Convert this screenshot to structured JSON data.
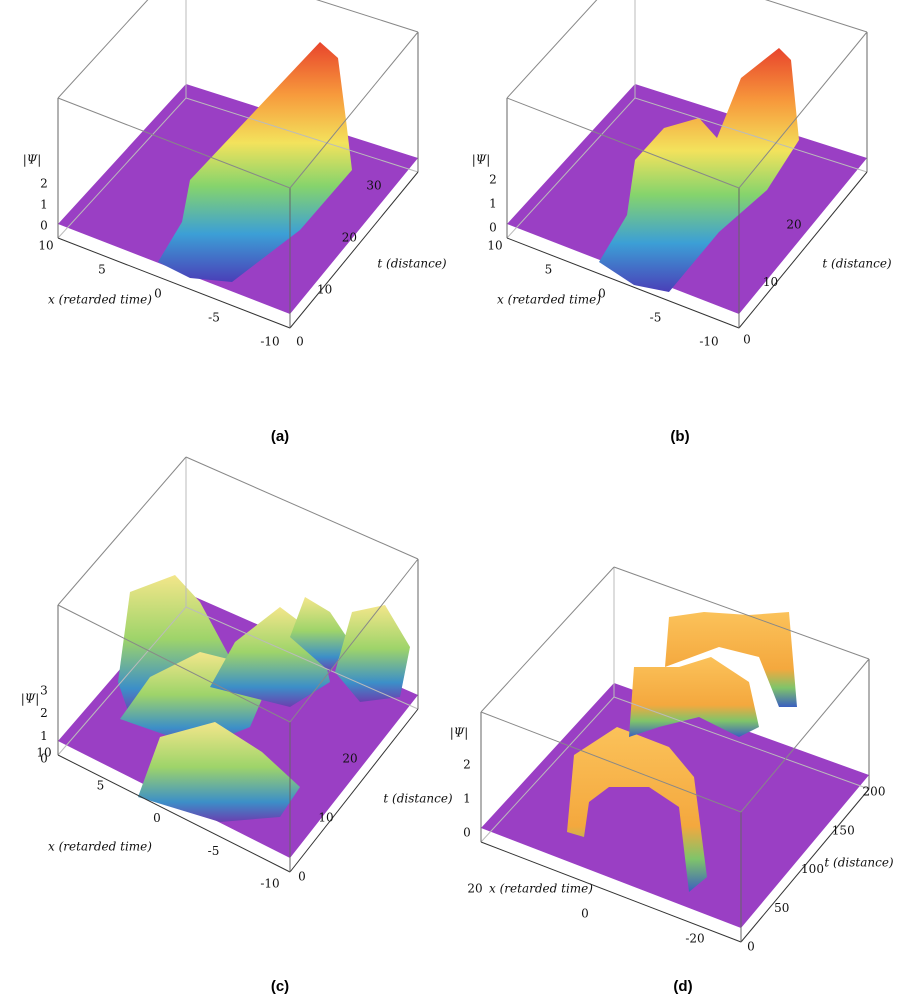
{
  "panels": [
    {
      "label": "(a)",
      "z_label": "|Ψ|",
      "z_ticks": [
        "0",
        "1",
        "2"
      ],
      "x_label": "x (retarded time)",
      "x_ticks": [
        "10",
        "5",
        "0",
        "-5",
        "-10"
      ],
      "t_label": "t (distance)",
      "t_ticks": [
        "0",
        "10",
        "20",
        "30"
      ]
    },
    {
      "label": "(b)",
      "z_label": "|Ψ|",
      "z_ticks": [
        "0",
        "1",
        "2"
      ],
      "x_label": "x (retarded time)",
      "x_ticks": [
        "10",
        "5",
        "0",
        "-5",
        "-10"
      ],
      "t_label": "t (distance)",
      "t_ticks": [
        "0",
        "10",
        "20"
      ]
    },
    {
      "label": "(c)",
      "z_label": "|Ψ|",
      "z_ticks": [
        "0",
        "1",
        "2",
        "3"
      ],
      "x_label": "x (retarded time)",
      "x_ticks": [
        "10",
        "5",
        "0",
        "-5",
        "-10"
      ],
      "t_label": "t (distance)",
      "t_ticks": [
        "0",
        "10",
        "20"
      ]
    },
    {
      "label": "(d)",
      "z_label": "|Ψ|",
      "z_ticks": [
        "0",
        "1",
        "2"
      ],
      "x_label": "x (retarded time)",
      "x_ticks": [
        "20",
        "0",
        "-20"
      ],
      "t_label": "t (distance)",
      "t_ticks": [
        "0",
        "50",
        "100",
        "150",
        "200"
      ]
    }
  ]
}
